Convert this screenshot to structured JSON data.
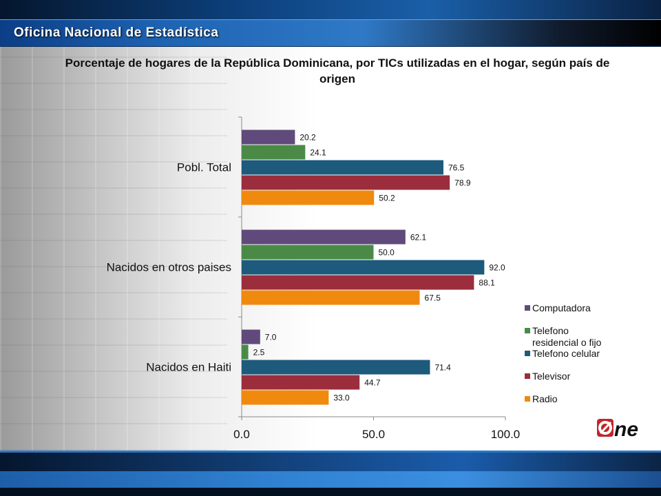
{
  "header": {
    "title": "Oficina Nacional de Estadística"
  },
  "logo": {
    "text": "One"
  },
  "chart_data": {
    "type": "bar",
    "orientation": "horizontal",
    "title": "Porcentaje de hogares de la República Dominicana, por TICs utilizadas en el hogar, según país de origen",
    "categories": [
      "Pobl. Total",
      "Nacidos en otros paises",
      "Nacidos en Haiti"
    ],
    "series": [
      {
        "name": "Computadora",
        "color": "#604a7b",
        "values": [
          20.2,
          62.1,
          7.0
        ],
        "labels": [
          "20.2",
          "62.1",
          "7.0"
        ]
      },
      {
        "name": "Telefono residencial o fijo",
        "name_lines": [
          "Telefono",
          "residencial o fijo"
        ],
        "color": "#4a8a46",
        "values": [
          24.1,
          50.0,
          2.5
        ],
        "labels": [
          "24.1",
          "50.0",
          "2.5"
        ]
      },
      {
        "name": "Telefono celular",
        "color": "#1d5a7c",
        "values": [
          76.5,
          92.0,
          71.4
        ],
        "labels": [
          "76.5",
          "92.0",
          "71.4"
        ]
      },
      {
        "name": "Televisor",
        "color": "#9b2d3c",
        "values": [
          78.9,
          88.1,
          44.7
        ],
        "labels": [
          "78.9",
          "88.1",
          "44.7"
        ]
      },
      {
        "name": "Radio",
        "color": "#f08a0f",
        "values": [
          50.2,
          67.5,
          33.0
        ],
        "labels": [
          "50.2",
          "67.5",
          "33.0"
        ]
      }
    ],
    "xlim": [
      0,
      100
    ],
    "xticks": [
      0,
      50,
      100
    ],
    "xtick_labels": [
      "0.0",
      "50.0",
      "100.0"
    ],
    "legend_position": "right",
    "grid": false
  }
}
